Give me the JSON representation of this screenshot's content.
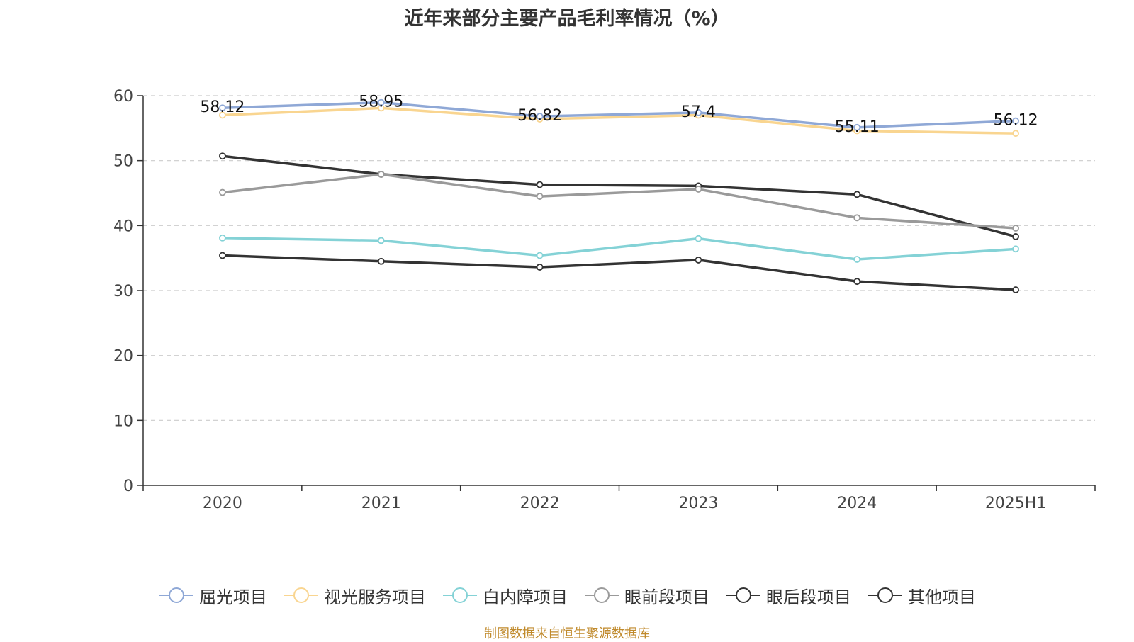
{
  "chart_data": {
    "type": "line",
    "title": "近年来部分主要产品毛利率情况（%）",
    "source_note": "制图数据来自恒生聚源数据库",
    "categories": [
      "2020",
      "2021",
      "2022",
      "2023",
      "2024",
      "2025H1"
    ],
    "ylim": [
      0,
      60
    ],
    "yticks": [
      "0",
      "10",
      "20",
      "30",
      "40",
      "50",
      "60"
    ],
    "grid": true,
    "legend_position": "bottom",
    "series": [
      {
        "name": "屈光项目",
        "color": "#8fa8d6",
        "values": [
          58.12,
          58.95,
          56.82,
          57.4,
          55.11,
          56.12
        ],
        "labels": [
          "58.12",
          "58.95",
          "56.82",
          "57.4",
          "55.11",
          "56.12"
        ]
      },
      {
        "name": "视光服务项目",
        "color": "#f9d590",
        "values": [
          57.0,
          58.1,
          56.4,
          57.0,
          54.6,
          54.2
        ]
      },
      {
        "name": "白内障项目",
        "color": "#84d2d6",
        "values": [
          38.1,
          37.7,
          35.4,
          38.0,
          34.8,
          36.4
        ]
      },
      {
        "name": "眼前段项目",
        "color": "#9a9a9a",
        "values": [
          45.1,
          47.9,
          44.5,
          45.6,
          41.2,
          39.6
        ]
      },
      {
        "name": "眼后段项目",
        "color": "#333333",
        "values": [
          50.7,
          47.9,
          46.3,
          46.1,
          44.8,
          38.3
        ]
      },
      {
        "name": "其他项目",
        "color": "#333333",
        "values": [
          35.4,
          34.5,
          33.6,
          34.7,
          31.4,
          30.1
        ]
      }
    ]
  }
}
